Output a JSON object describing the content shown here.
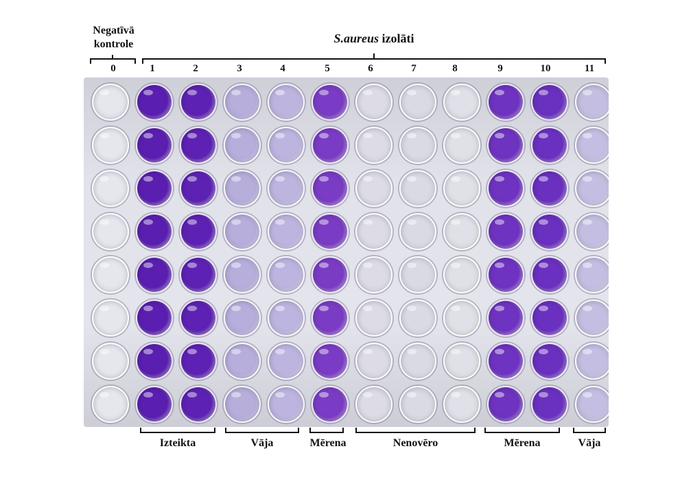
{
  "negative_control": {
    "line1": "Negatīvā",
    "line2": "kontrole"
  },
  "isolates_title": {
    "species": "S.aureus",
    "word": "izolāti"
  },
  "columns": [
    "0",
    "1",
    "2",
    "3",
    "4",
    "5",
    "6",
    "7",
    "8",
    "9",
    "10",
    "11"
  ],
  "groups": {
    "izteikta": "Izteikta",
    "vaja1": "Vāja",
    "merena1": "Mērena",
    "nenovero": "Nenovēro",
    "merena2": "Mērena",
    "vaja2": "Vāja"
  },
  "plate": {
    "rows": 8,
    "cols": 12
  },
  "well_colors": [
    "#e6e6ee",
    "#5a1fb0",
    "#5d22b3",
    "#b7aedc",
    "#bdb5e0",
    "#7a3cc4",
    "#dcdbe6",
    "#dadae5",
    "#e0e0e8",
    "#6e33c0",
    "#6a30bf",
    "#c4bfe2"
  ]
}
